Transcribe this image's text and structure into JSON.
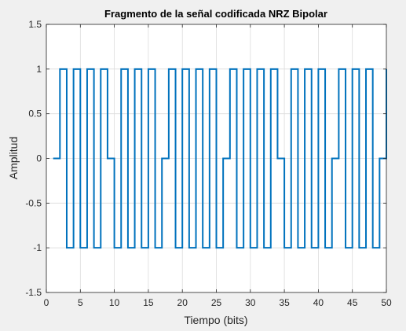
{
  "chart_data": {
    "type": "line",
    "title": "Fragmento de la señal codificada NRZ Bipolar",
    "xlabel": "Tiempo (bits)",
    "ylabel": "Amplitud",
    "xlim": [
      0,
      50
    ],
    "ylim": [
      -1.5,
      1.5
    ],
    "grid": true,
    "xticks": [
      "0",
      "5",
      "10",
      "15",
      "20",
      "25",
      "30",
      "35",
      "40",
      "45",
      "50"
    ],
    "yticks": [
      "-1.5",
      "-1",
      "-0.5",
      "0",
      "0.5",
      "1",
      "1.5"
    ],
    "line_color": "#0072BD",
    "step": "post",
    "x": [
      1,
      2,
      3,
      4,
      5,
      6,
      7,
      8,
      9,
      10,
      11,
      12,
      13,
      14,
      15,
      16,
      17,
      18,
      19,
      20,
      21,
      22,
      23,
      24,
      25,
      26,
      27,
      28,
      29,
      30,
      31,
      32,
      33,
      34,
      35,
      36,
      37,
      38,
      39,
      40,
      41,
      42,
      43,
      44,
      45,
      46,
      47,
      48,
      49,
      50
    ],
    "values": [
      0,
      1,
      -1,
      1,
      -1,
      1,
      -1,
      1,
      0,
      -1,
      1,
      -1,
      1,
      -1,
      1,
      -1,
      0,
      1,
      -1,
      1,
      -1,
      1,
      -1,
      1,
      -1,
      0,
      1,
      -1,
      1,
      -1,
      1,
      -1,
      1,
      0,
      -1,
      1,
      -1,
      1,
      -1,
      1,
      -1,
      0,
      1,
      -1,
      1,
      -1,
      1,
      -1,
      0,
      1
    ]
  }
}
